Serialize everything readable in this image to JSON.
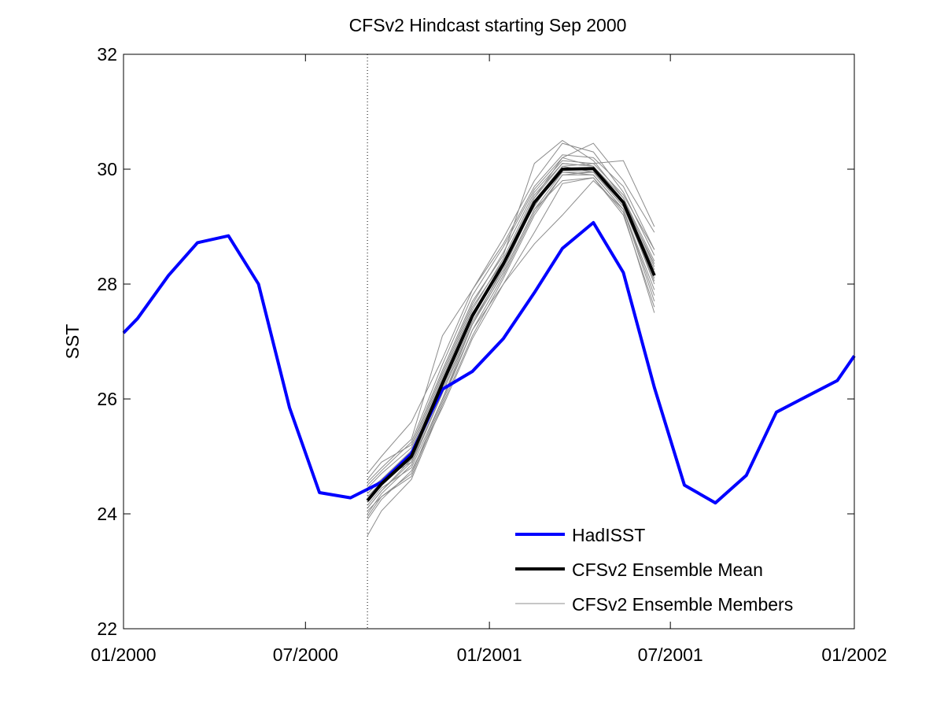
{
  "chart_data": {
    "type": "line",
    "title": "CFSv2 Hindcast starting Sep 2000",
    "xlabel": "",
    "ylabel": "SST",
    "xlim": [
      "2000-01",
      "2002-01"
    ],
    "ylim": [
      22,
      32
    ],
    "x_ticks": [
      "01/2000",
      "07/2000",
      "01/2001",
      "07/2001",
      "01/2002"
    ],
    "y_ticks": [
      22,
      24,
      26,
      28,
      30,
      32
    ],
    "grid": false,
    "legend_position": "bottom-right",
    "vertical_marker": {
      "x": "2000-09-01",
      "style": "dotted"
    },
    "hadisst": {
      "name": "HadISST",
      "color": "#0000ff",
      "points": [
        [
          "2000-01-01",
          27.15
        ],
        [
          "2000-01-15",
          27.4
        ],
        [
          "2000-02-15",
          28.15
        ],
        [
          "2000-03-15",
          28.72
        ],
        [
          "2000-04-15",
          28.84
        ],
        [
          "2000-05-15",
          28.0
        ],
        [
          "2000-06-15",
          25.85
        ],
        [
          "2000-07-15",
          24.37
        ],
        [
          "2000-08-15",
          24.28
        ],
        [
          "2000-09-15",
          24.55
        ],
        [
          "2000-10-15",
          25.05
        ],
        [
          "2000-11-15",
          26.17
        ],
        [
          "2000-12-15",
          26.48
        ],
        [
          "2001-01-15",
          27.05
        ],
        [
          "2001-02-15",
          27.85
        ],
        [
          "2001-03-15",
          28.62
        ],
        [
          "2001-04-15",
          29.07
        ],
        [
          "2001-05-15",
          28.2
        ],
        [
          "2001-06-15",
          26.2
        ],
        [
          "2001-07-15",
          24.5
        ],
        [
          "2001-08-15",
          24.19
        ],
        [
          "2001-09-15",
          24.67
        ],
        [
          "2001-10-15",
          25.77
        ],
        [
          "2001-11-15",
          26.05
        ],
        [
          "2001-12-15",
          26.32
        ],
        [
          "2002-01-01",
          26.75
        ]
      ]
    },
    "ensemble_mean": {
      "name": "CFSv2 Ensemble Mean",
      "color": "#000000",
      "points": [
        [
          "2000-09-01",
          24.23
        ],
        [
          "2000-09-15",
          24.52
        ],
        [
          "2000-10-15",
          25.0
        ],
        [
          "2000-11-15",
          26.27
        ],
        [
          "2000-12-15",
          27.45
        ],
        [
          "2001-01-15",
          28.35
        ],
        [
          "2001-02-15",
          29.42
        ],
        [
          "2001-03-15",
          30.0
        ],
        [
          "2001-04-15",
          30.01
        ],
        [
          "2001-05-15",
          29.42
        ],
        [
          "2001-06-15",
          28.15
        ]
      ]
    },
    "ensemble_members": {
      "name": "CFSv2 Ensemble Members",
      "color": "#8c8c8c",
      "x": [
        "2000-09-01",
        "2000-09-15",
        "2000-10-15",
        "2000-11-15",
        "2000-12-15",
        "2001-01-15",
        "2001-02-15",
        "2001-03-15",
        "2001-04-15",
        "2001-05-15",
        "2001-06-15"
      ],
      "members": [
        [
          23.62,
          24.05,
          24.6,
          25.9,
          27.1,
          28.1,
          29.2,
          29.9,
          29.95,
          29.4,
          28.0
        ],
        [
          24.7,
          25.0,
          25.6,
          26.7,
          27.9,
          28.7,
          29.7,
          30.25,
          30.2,
          29.7,
          28.6
        ],
        [
          24.1,
          24.4,
          24.9,
          26.1,
          27.3,
          28.2,
          29.3,
          29.95,
          29.9,
          29.3,
          27.9
        ],
        [
          24.4,
          24.6,
          25.1,
          26.4,
          27.6,
          28.4,
          29.5,
          30.1,
          30.05,
          29.5,
          28.3
        ],
        [
          23.95,
          24.3,
          24.7,
          26.0,
          27.2,
          28.0,
          28.9,
          29.75,
          29.85,
          29.2,
          27.6
        ],
        [
          24.55,
          24.8,
          25.3,
          27.1,
          27.9,
          28.8,
          29.8,
          30.45,
          30.3,
          29.6,
          28.5
        ],
        [
          24.2,
          24.5,
          25.0,
          26.3,
          27.5,
          28.3,
          29.4,
          30.0,
          30.0,
          29.4,
          28.1
        ],
        [
          24.3,
          24.55,
          24.95,
          26.2,
          27.4,
          28.35,
          29.45,
          30.05,
          29.95,
          29.35,
          28.2
        ],
        [
          24.0,
          24.35,
          24.85,
          26.1,
          27.3,
          28.3,
          29.5,
          30.2,
          30.45,
          29.8,
          28.9
        ],
        [
          24.6,
          24.9,
          25.2,
          26.5,
          27.7,
          28.5,
          30.1,
          30.5,
          30.15,
          29.5,
          28.4
        ],
        [
          24.15,
          24.45,
          24.8,
          26.0,
          27.3,
          28.2,
          29.3,
          29.8,
          29.85,
          29.25,
          27.5
        ],
        [
          24.25,
          24.5,
          25.05,
          26.35,
          27.55,
          28.45,
          29.55,
          30.1,
          30.05,
          29.45,
          28.25
        ],
        [
          24.05,
          24.3,
          24.65,
          25.95,
          27.2,
          28.15,
          29.25,
          29.9,
          29.9,
          29.3,
          27.8
        ],
        [
          24.45,
          24.7,
          25.15,
          26.45,
          27.65,
          28.55,
          29.6,
          30.15,
          30.1,
          29.55,
          28.6
        ],
        [
          24.35,
          24.6,
          24.9,
          26.25,
          27.45,
          28.4,
          29.35,
          30.05,
          30.1,
          30.15,
          29.0
        ],
        [
          23.9,
          24.25,
          24.75,
          25.85,
          27.05,
          28.0,
          28.7,
          29.2,
          29.8,
          29.3,
          27.7
        ],
        [
          24.5,
          24.75,
          25.25,
          26.6,
          27.8,
          28.65,
          29.65,
          30.2,
          30.05,
          29.45,
          28.35
        ],
        [
          24.1,
          24.4,
          24.95,
          26.15,
          27.35,
          28.25,
          29.4,
          29.95,
          29.95,
          29.35,
          28.05
        ]
      ]
    }
  }
}
